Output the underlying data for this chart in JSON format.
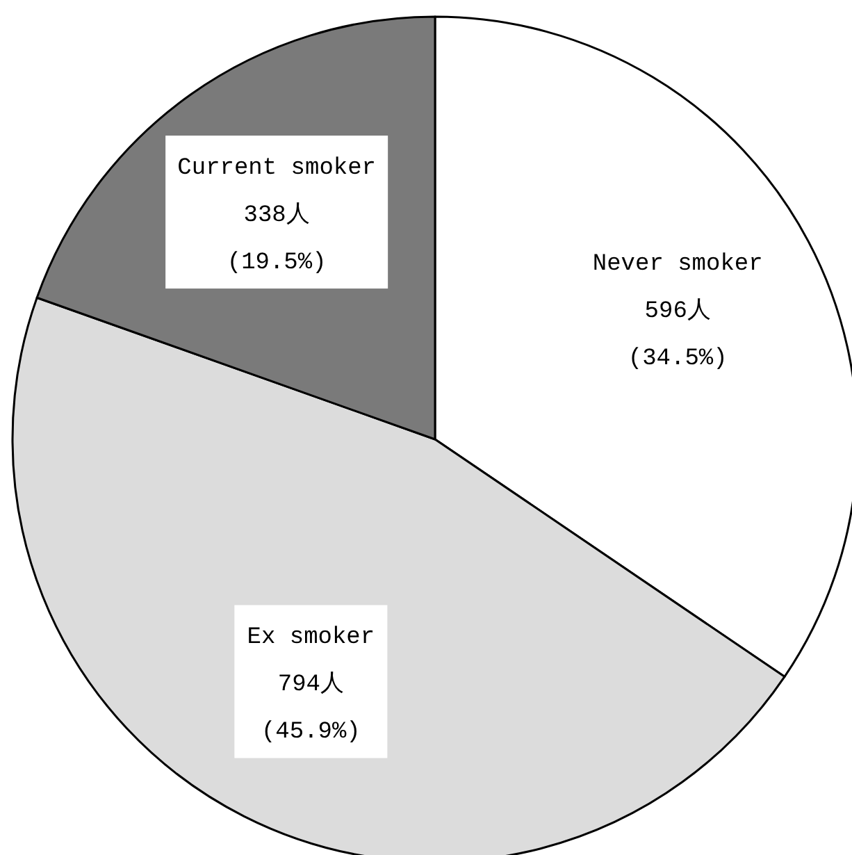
{
  "chart_data": {
    "type": "pie",
    "categories": [
      "Never smoker",
      "Ex smoker",
      "Current smoker"
    ],
    "values": [
      596,
      794,
      338
    ],
    "colors": [
      "#ffffff",
      "#dcdcdc",
      "#7a7a7a"
    ],
    "value_labels": [
      "596人\n(34.5%)",
      "794人\n(45.9%)",
      "338人\n(19.5%)"
    ]
  }
}
